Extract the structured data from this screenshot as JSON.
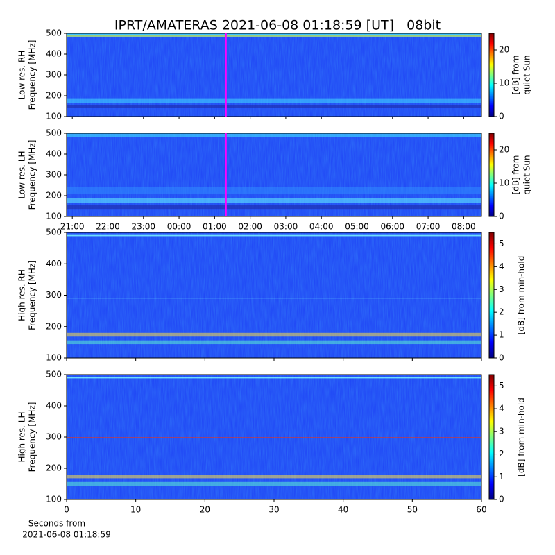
{
  "chart_data": [
    {
      "type": "spectrogram",
      "title": "IPRT/AMATERAS 2021-06-08 01:18:59 [UT]   08bit",
      "ylabel": [
        "Low res. RH",
        "Frequency [MHz]"
      ],
      "ylim": [
        100,
        500
      ],
      "yticks": [
        100,
        200,
        300,
        400,
        500
      ],
      "xlim": [
        20.84,
        32.5
      ],
      "marker": 25.316,
      "marker_color": "#ff00ff",
      "colorbar": {
        "label": [
          "[dB] from",
          "quiet Sun"
        ],
        "lim": [
          0,
          25
        ],
        "ticks": [
          0,
          10,
          20
        ]
      }
    },
    {
      "type": "spectrogram",
      "ylabel": [
        "Low res. LH",
        "Frequency [MHz]"
      ],
      "ylim": [
        100,
        500
      ],
      "yticks": [
        100,
        200,
        300,
        400,
        500
      ],
      "xlim": [
        20.84,
        32.5
      ],
      "xticks": [
        {
          "value": 21,
          "label": "21:00"
        },
        {
          "value": 22,
          "label": "22:00"
        },
        {
          "value": 23,
          "label": "23:00"
        },
        {
          "value": 24,
          "label": "00:00"
        },
        {
          "value": 25,
          "label": "01:00"
        },
        {
          "value": 26,
          "label": "02:00"
        },
        {
          "value": 27,
          "label": "03:00"
        },
        {
          "value": 28,
          "label": "04:00"
        },
        {
          "value": 29,
          "label": "05:00"
        },
        {
          "value": 30,
          "label": "06:00"
        },
        {
          "value": 31,
          "label": "07:00"
        },
        {
          "value": 32,
          "label": "08:00"
        }
      ],
      "marker": 25.316,
      "marker_color": "#ff00ff",
      "colorbar": {
        "label": [
          "[dB] from",
          "quiet Sun"
        ],
        "lim": [
          0,
          25
        ],
        "ticks": [
          0,
          10,
          20
        ]
      }
    },
    {
      "type": "spectrogram",
      "ylabel": [
        "High res. RH",
        "Frequency [MHz]"
      ],
      "ylim": [
        100,
        500
      ],
      "yticks": [
        100,
        200,
        300,
        400,
        500
      ],
      "xlim": [
        0,
        60
      ],
      "colorbar": {
        "label": [
          "[dB] from min-hold"
        ],
        "lim": [
          0,
          5.5
        ],
        "ticks": [
          0,
          1,
          2,
          3,
          4,
          5
        ]
      }
    },
    {
      "type": "spectrogram",
      "ylabel": [
        "High res. LH",
        "Frequency [MHz]"
      ],
      "ylim": [
        100,
        500
      ],
      "yticks": [
        100,
        200,
        300,
        400,
        500
      ],
      "xlim": [
        0,
        60
      ],
      "xticks": [
        0,
        10,
        20,
        30,
        40,
        50,
        60
      ],
      "xlabel": [
        "Seconds from",
        "2021-06-08 01:18:59"
      ],
      "colorbar": {
        "label": [
          "[dB] from min-hold"
        ],
        "lim": [
          0,
          5.5
        ],
        "ticks": [
          0,
          1,
          2,
          3,
          4,
          5
        ]
      }
    }
  ]
}
